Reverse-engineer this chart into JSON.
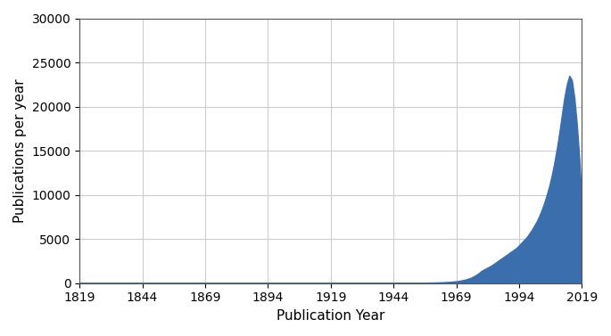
{
  "title": "",
  "xlabel": "Publication Year",
  "ylabel": "Publications per year",
  "xlim": [
    1819,
    2019
  ],
  "ylim": [
    0,
    30000
  ],
  "xticks": [
    1819,
    1844,
    1869,
    1894,
    1919,
    1944,
    1969,
    1994,
    2019
  ],
  "yticks": [
    0,
    5000,
    10000,
    15000,
    20000,
    25000,
    30000
  ],
  "fill_color": "#3a6eac",
  "fill_alpha": 1.0,
  "background_color": "#ffffff",
  "grid_color": "#cccccc",
  "years": [
    1819,
    1820,
    1821,
    1822,
    1823,
    1824,
    1825,
    1826,
    1827,
    1828,
    1829,
    1830,
    1831,
    1832,
    1833,
    1834,
    1835,
    1836,
    1837,
    1838,
    1839,
    1840,
    1841,
    1842,
    1843,
    1844,
    1845,
    1846,
    1847,
    1848,
    1849,
    1850,
    1851,
    1852,
    1853,
    1854,
    1855,
    1856,
    1857,
    1858,
    1859,
    1860,
    1861,
    1862,
    1863,
    1864,
    1865,
    1866,
    1867,
    1868,
    1869,
    1870,
    1871,
    1872,
    1873,
    1874,
    1875,
    1876,
    1877,
    1878,
    1879,
    1880,
    1881,
    1882,
    1883,
    1884,
    1885,
    1886,
    1887,
    1888,
    1889,
    1890,
    1891,
    1892,
    1893,
    1894,
    1895,
    1896,
    1897,
    1898,
    1899,
    1900,
    1901,
    1902,
    1903,
    1904,
    1905,
    1906,
    1907,
    1908,
    1909,
    1910,
    1911,
    1912,
    1913,
    1914,
    1915,
    1916,
    1917,
    1918,
    1919,
    1920,
    1921,
    1922,
    1923,
    1924,
    1925,
    1926,
    1927,
    1928,
    1929,
    1930,
    1931,
    1932,
    1933,
    1934,
    1935,
    1936,
    1937,
    1938,
    1939,
    1940,
    1941,
    1942,
    1943,
    1944,
    1945,
    1946,
    1947,
    1948,
    1949,
    1950,
    1951,
    1952,
    1953,
    1954,
    1955,
    1956,
    1957,
    1958,
    1959,
    1960,
    1961,
    1962,
    1963,
    1964,
    1965,
    1966,
    1967,
    1968,
    1969,
    1970,
    1971,
    1972,
    1973,
    1974,
    1975,
    1976,
    1977,
    1978,
    1979,
    1980,
    1981,
    1982,
    1983,
    1984,
    1985,
    1986,
    1987,
    1988,
    1989,
    1990,
    1991,
    1992,
    1993,
    1994,
    1995,
    1996,
    1997,
    1998,
    1999,
    2000,
    2001,
    2002,
    2003,
    2004,
    2005,
    2006,
    2007,
    2008,
    2009,
    2010,
    2011,
    2012,
    2013,
    2014,
    2015,
    2016,
    2017,
    2018,
    2019
  ],
  "values": [
    0,
    0,
    0,
    0,
    0,
    0,
    0,
    0,
    0,
    0,
    0,
    0,
    0,
    0,
    0,
    0,
    0,
    0,
    0,
    0,
    0,
    0,
    0,
    0,
    0,
    0,
    0,
    0,
    0,
    0,
    0,
    0,
    0,
    0,
    0,
    0,
    0,
    0,
    0,
    0,
    0,
    0,
    0,
    0,
    0,
    0,
    0,
    0,
    0,
    0,
    0,
    0,
    0,
    0,
    0,
    0,
    0,
    0,
    0,
    0,
    0,
    0,
    0,
    0,
    0,
    0,
    0,
    0,
    0,
    0,
    0,
    0,
    0,
    0,
    0,
    0,
    0,
    0,
    0,
    0,
    0,
    0,
    0,
    0,
    0,
    0,
    0,
    0,
    0,
    0,
    0,
    0,
    0,
    0,
    0,
    0,
    0,
    0,
    0,
    0,
    5,
    5,
    5,
    5,
    5,
    5,
    5,
    5,
    5,
    10,
    10,
    10,
    10,
    10,
    15,
    15,
    15,
    15,
    20,
    20,
    20,
    20,
    20,
    20,
    20,
    20,
    20,
    20,
    25,
    25,
    30,
    30,
    35,
    35,
    40,
    40,
    45,
    50,
    55,
    60,
    65,
    70,
    80,
    90,
    100,
    110,
    125,
    145,
    165,
    190,
    220,
    260,
    310,
    370,
    440,
    530,
    640,
    780,
    950,
    1150,
    1380,
    1550,
    1700,
    1850,
    2000,
    2200,
    2400,
    2600,
    2800,
    3000,
    3200,
    3400,
    3600,
    3800,
    4000,
    4300,
    4600,
    4900,
    5200,
    5600,
    6000,
    6500,
    7000,
    7600,
    8300,
    9100,
    10000,
    11000,
    12200,
    13600,
    15200,
    17000,
    19000,
    21000,
    22500,
    23500,
    23000,
    21000,
    18000,
    14000,
    9000
  ]
}
